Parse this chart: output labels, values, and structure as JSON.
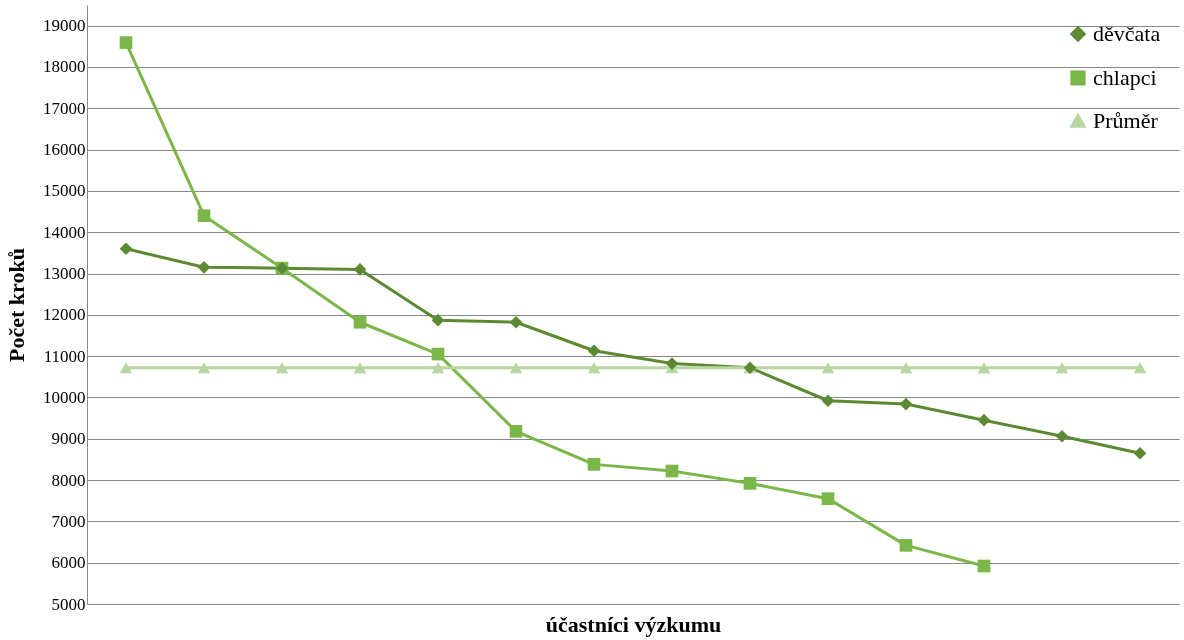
{
  "chart_data": {
    "type": "line",
    "xlabel": "účastníci výzkumu",
    "ylabel": "Počet kroků",
    "categories": [
      null,
      null,
      null,
      null,
      null,
      null,
      null,
      null,
      null,
      null,
      null,
      null,
      null,
      null
    ],
    "series": [
      {
        "name": "děvčata",
        "color": "#5b8a32",
        "marker": "diamond",
        "values": [
          13600,
          13150,
          13130,
          13100,
          11870,
          11820,
          11130,
          10820,
          10720,
          9920,
          9840,
          9450,
          9060,
          8650
        ]
      },
      {
        "name": "chlapci",
        "color": "#7ab648",
        "marker": "square",
        "values": [
          18590,
          14400,
          13130,
          11820,
          11050,
          9180,
          8380,
          8220,
          7920,
          7550,
          6420,
          5920,
          null,
          null
        ]
      },
      {
        "name": "Průměr",
        "color": "#b8d6a0",
        "marker": "triangle",
        "values": [
          10720,
          10720,
          10720,
          10720,
          10720,
          10720,
          10720,
          10720,
          10720,
          10720,
          10720,
          10720,
          10720,
          10720
        ]
      }
    ],
    "ylim": [
      5000,
      19500
    ],
    "yticks": [
      5000,
      6000,
      7000,
      8000,
      9000,
      10000,
      11000,
      12000,
      13000,
      14000,
      15000,
      16000,
      17000,
      18000,
      19000
    ],
    "grid": "y",
    "legend": "top right",
    "tick_labels": "y",
    "line_style": "solid"
  }
}
